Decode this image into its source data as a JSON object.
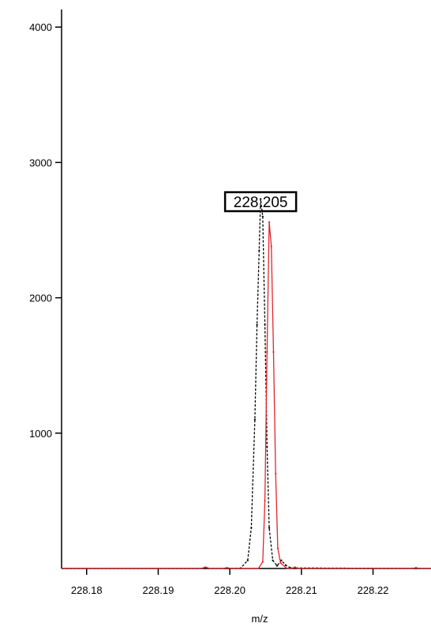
{
  "chart_data": {
    "type": "line",
    "title": "",
    "xlabel": "m/z",
    "ylabel": "",
    "xlim": [
      228.1765,
      228.2281
    ],
    "ylim": [
      0,
      4200
    ],
    "x_ticks": [
      "228.18",
      "228.19",
      "228.20",
      "228.21",
      "228.22"
    ],
    "y_ticks": [
      "1000",
      "2000",
      "3000",
      "4000"
    ],
    "grid": false,
    "legend": "none",
    "annotations": [
      {
        "text": "228.205",
        "x": 228.2043,
        "y": 2710,
        "boxed": true
      }
    ],
    "series": [
      {
        "color": "#000000",
        "style": "dashed",
        "points": [
          [
            228.1765,
            0
          ],
          [
            228.2,
            0
          ],
          [
            228.2015,
            2
          ],
          [
            228.2025,
            60
          ],
          [
            228.203,
            300
          ],
          [
            228.2035,
            1100
          ],
          [
            228.2038,
            1800
          ],
          [
            228.2041,
            2350
          ],
          [
            228.2043,
            2730
          ],
          [
            228.2046,
            2600
          ],
          [
            228.2049,
            1800
          ],
          [
            228.2052,
            900
          ],
          [
            228.2055,
            300
          ],
          [
            228.206,
            60
          ],
          [
            228.2066,
            20
          ],
          [
            228.2072,
            60
          ],
          [
            228.2078,
            25
          ],
          [
            228.2085,
            4
          ],
          [
            228.2281,
            0
          ]
        ]
      },
      {
        "color": "#e0262c",
        "style": "solid",
        "points": [
          [
            228.1765,
            0
          ],
          [
            228.196,
            0
          ],
          [
            228.1966,
            10
          ],
          [
            228.1972,
            0
          ],
          [
            228.199,
            0
          ],
          [
            228.1996,
            6
          ],
          [
            228.2002,
            0
          ],
          [
            228.204,
            0
          ],
          [
            228.2046,
            50
          ],
          [
            228.2049,
            500
          ],
          [
            228.2052,
            1600
          ],
          [
            228.2055,
            2560
          ],
          [
            228.2058,
            2380
          ],
          [
            228.2061,
            1600
          ],
          [
            228.2064,
            700
          ],
          [
            228.2067,
            150
          ],
          [
            228.2071,
            40
          ],
          [
            228.208,
            0
          ],
          [
            228.2087,
            0
          ],
          [
            228.2091,
            10
          ],
          [
            228.2095,
            0
          ],
          [
            228.2255,
            0
          ],
          [
            228.226,
            6
          ],
          [
            228.2265,
            0
          ],
          [
            228.2281,
            0
          ]
        ]
      }
    ]
  }
}
